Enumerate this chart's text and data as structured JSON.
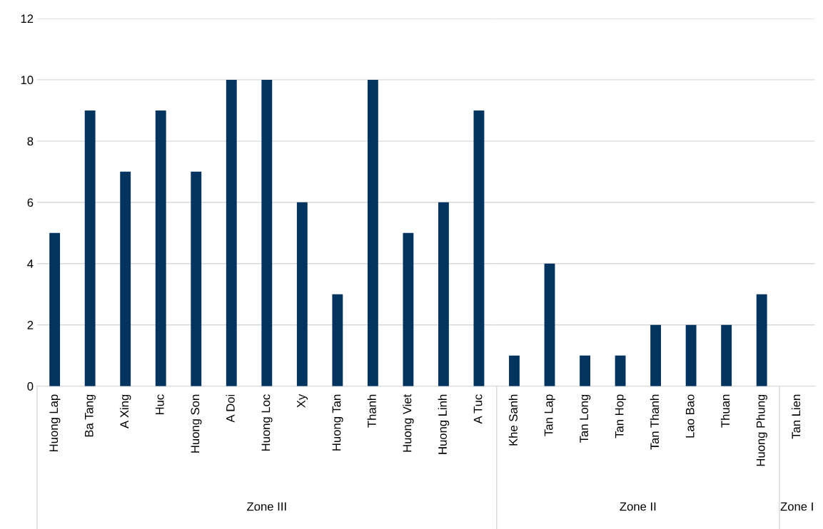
{
  "chart_data": [
    {
      "type": "bar",
      "categories": [
        "Huong Lap",
        "Ba Tang",
        "A Xing",
        "Huc",
        "Huong Son",
        "A Doi",
        "Huong Loc",
        "Xy",
        "Huong Tan",
        "Thanh",
        "Huong Viet",
        "Huong Linh",
        "A Tuc"
      ],
      "values": [
        5,
        9,
        7,
        9,
        7,
        10,
        10,
        6,
        3,
        10,
        5,
        6,
        9
      ],
      "color": "#03345f",
      "ylim": [
        0,
        12
      ],
      "yticks": [
        0,
        2,
        4,
        6,
        8,
        10,
        12
      ],
      "grid": "y",
      "xlabel": "Zone III"
    },
    {
      "type": "bar",
      "categories": [
        "Khe Sanh",
        "Tan Lap",
        "Tan Long",
        "Tan Hop",
        "Tan Thanh",
        "Lao Bao",
        "Thuan",
        "Huong Phung"
      ],
      "values": [
        1,
        4,
        1,
        1,
        2,
        2,
        2,
        3
      ],
      "color": "#03345f",
      "ylim": [
        0,
        12
      ],
      "yticks": [
        0,
        2,
        4,
        6,
        8,
        10,
        12
      ],
      "grid": "y",
      "xlabel": "Zone II",
      "tick_labels": "x"
    },
    {
      "type": "bar",
      "categories": [
        "Tan Lien"
      ],
      "values": [
        0
      ],
      "color": "#03345f",
      "ylim": [
        0,
        12
      ],
      "yticks": [
        0,
        2,
        4,
        6,
        8,
        10,
        12
      ],
      "grid": "y",
      "xlabel": "Zone I",
      "tick_labels": "x"
    }
  ]
}
